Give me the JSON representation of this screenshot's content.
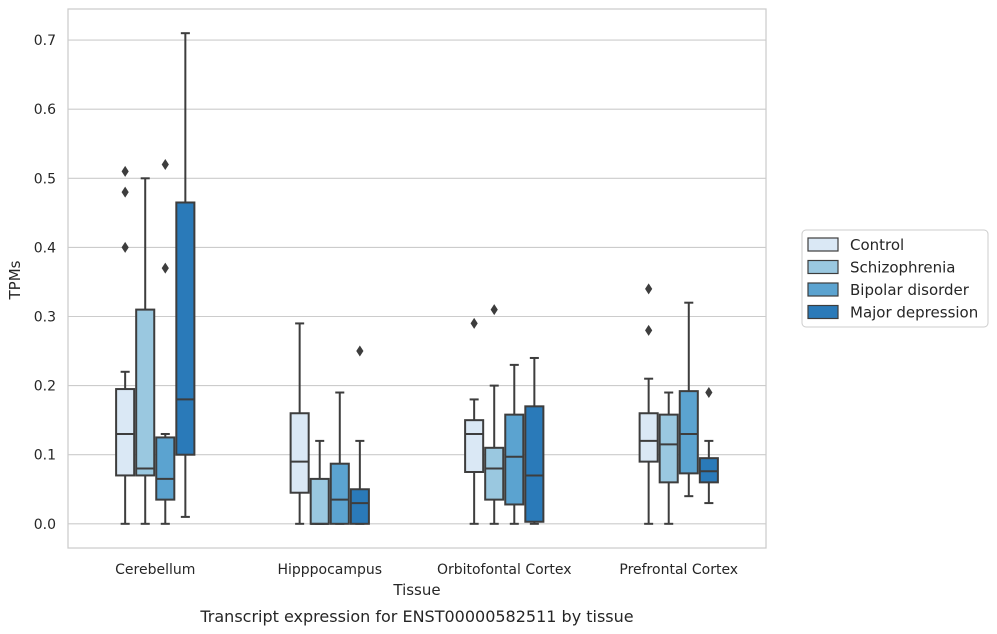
{
  "chart_data": {
    "type": "box",
    "title": "Transcript expression for ENST00000582511 by tissue",
    "xlabel": "Tissue",
    "ylabel": "TPMs",
    "ylim": [
      -0.035,
      0.745
    ],
    "yticks": [
      0.0,
      0.1,
      0.2,
      0.3,
      0.4,
      0.5,
      0.6,
      0.7
    ],
    "ytick_labels": [
      "0.0",
      "0.1",
      "0.2",
      "0.3",
      "0.4",
      "0.5",
      "0.6",
      "0.7"
    ],
    "grid": "horizontal",
    "legend_position": "right",
    "categories": [
      "Cerebellum",
      "Hipppocampus",
      "Orbitofontal Cortex",
      "Prefrontal Cortex"
    ],
    "series": [
      {
        "name": "Control",
        "color": "#dae8f5",
        "boxes": [
          {
            "whislo": 0.0,
            "q1": 0.07,
            "median": 0.13,
            "q3": 0.195,
            "whishi": 0.22,
            "fliers": [
              0.4,
              0.48,
              0.51
            ]
          },
          {
            "whislo": 0.0,
            "q1": 0.045,
            "median": 0.09,
            "q3": 0.16,
            "whishi": 0.29,
            "fliers": []
          },
          {
            "whislo": 0.0,
            "q1": 0.075,
            "median": 0.13,
            "q3": 0.15,
            "whishi": 0.18,
            "fliers": [
              0.29
            ]
          },
          {
            "whislo": 0.0,
            "q1": 0.09,
            "median": 0.12,
            "q3": 0.16,
            "whishi": 0.21,
            "fliers": [
              0.28,
              0.34
            ]
          }
        ]
      },
      {
        "name": "Schizophrenia",
        "color": "#9ac8e0",
        "boxes": [
          {
            "whislo": 0.0,
            "q1": 0.07,
            "median": 0.08,
            "q3": 0.31,
            "whishi": 0.5,
            "fliers": []
          },
          {
            "whislo": 0.0,
            "q1": 0.0,
            "median": 0.0,
            "q3": 0.065,
            "whishi": 0.12,
            "fliers": []
          },
          {
            "whislo": 0.0,
            "q1": 0.035,
            "median": 0.08,
            "q3": 0.11,
            "whishi": 0.2,
            "fliers": [
              0.31
            ]
          },
          {
            "whislo": 0.0,
            "q1": 0.06,
            "median": 0.115,
            "q3": 0.158,
            "whishi": 0.19,
            "fliers": []
          }
        ]
      },
      {
        "name": "Bipolar disorder",
        "color": "#5ba3d0",
        "boxes": [
          {
            "whislo": 0.0,
            "q1": 0.035,
            "median": 0.065,
            "q3": 0.125,
            "whishi": 0.13,
            "fliers": [
              0.37,
              0.52
            ]
          },
          {
            "whislo": 0.0,
            "q1": 0.0,
            "median": 0.035,
            "q3": 0.087,
            "whishi": 0.19,
            "fliers": []
          },
          {
            "whislo": 0.0,
            "q1": 0.028,
            "median": 0.097,
            "q3": 0.158,
            "whishi": 0.23,
            "fliers": []
          },
          {
            "whislo": 0.04,
            "q1": 0.073,
            "median": 0.13,
            "q3": 0.192,
            "whishi": 0.32,
            "fliers": []
          }
        ]
      },
      {
        "name": "Major depression",
        "color": "#2a7ab9",
        "boxes": [
          {
            "whislo": 0.01,
            "q1": 0.1,
            "median": 0.18,
            "q3": 0.465,
            "whishi": 0.71,
            "fliers": []
          },
          {
            "whislo": 0.0,
            "q1": 0.0,
            "median": 0.03,
            "q3": 0.05,
            "whishi": 0.12,
            "fliers": [
              0.25
            ]
          },
          {
            "whislo": 0.0,
            "q1": 0.003,
            "median": 0.07,
            "q3": 0.17,
            "whishi": 0.24,
            "fliers": []
          },
          {
            "whislo": 0.03,
            "q1": 0.06,
            "median": 0.076,
            "q3": 0.095,
            "whishi": 0.12,
            "fliers": [
              0.19
            ]
          }
        ]
      }
    ]
  }
}
